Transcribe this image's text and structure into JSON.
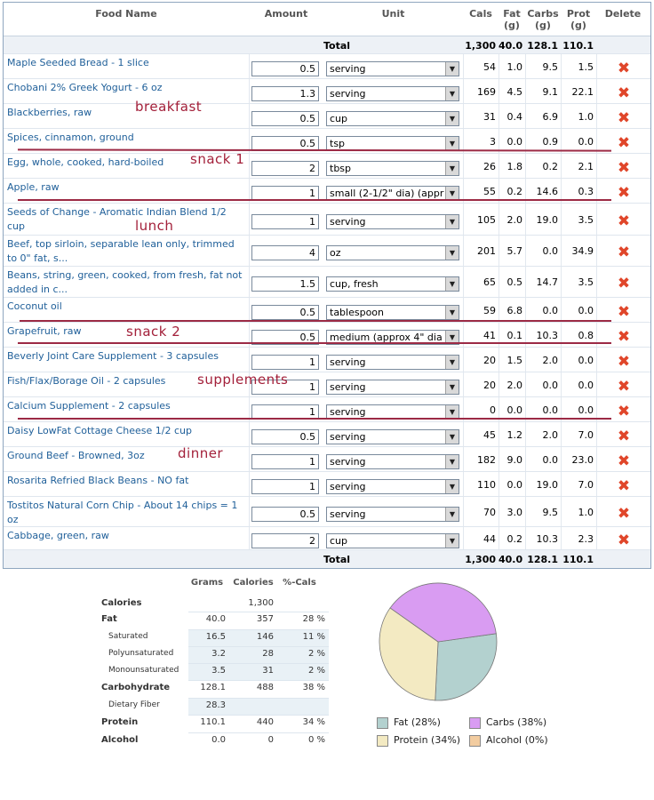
{
  "headers": {
    "name": "Food Name",
    "amount": "Amount",
    "unit": "Unit",
    "cals": "Cals",
    "fat": "Fat",
    "fat_unit": "(g)",
    "carbs": "Carbs",
    "carbs_unit": "(g)",
    "prot": "Prot",
    "prot_unit": "(g)",
    "delete": "Delete"
  },
  "total": {
    "label": "Total",
    "cals": "1,300",
    "fat": "40.0",
    "carbs": "128.1",
    "prot": "110.1"
  },
  "foods": [
    {
      "name": "Maple Seeded Bread - 1 slice",
      "amount": "0.5",
      "unit": "serving",
      "cals": "54",
      "fat": "1.0",
      "carbs": "9.5",
      "prot": "1.5"
    },
    {
      "name": "Chobani 2% Greek Yogurt - 6 oz",
      "amount": "1.3",
      "unit": "serving",
      "cals": "169",
      "fat": "4.5",
      "carbs": "9.1",
      "prot": "22.1"
    },
    {
      "name": "Blackberries, raw",
      "amount": "0.5",
      "unit": "cup",
      "cals": "31",
      "fat": "0.4",
      "carbs": "6.9",
      "prot": "1.0"
    },
    {
      "name": "Spices, cinnamon, ground",
      "amount": "0.5",
      "unit": "tsp",
      "cals": "3",
      "fat": "0.0",
      "carbs": "0.9",
      "prot": "0.0"
    },
    {
      "name": "Egg, whole, cooked, hard-boiled",
      "amount": "2",
      "unit": "tbsp",
      "cals": "26",
      "fat": "1.8",
      "carbs": "0.2",
      "prot": "2.1"
    },
    {
      "name": "Apple, raw",
      "amount": "1",
      "unit": "small (2-1/2\" dia) (appr",
      "cals": "55",
      "fat": "0.2",
      "carbs": "14.6",
      "prot": "0.3"
    },
    {
      "name": "Seeds of Change - Aromatic Indian Blend 1/2 cup",
      "amount": "1",
      "unit": "serving",
      "cals": "105",
      "fat": "2.0",
      "carbs": "19.0",
      "prot": "3.5"
    },
    {
      "name": "Beef, top sirloin, separable lean only, trimmed to 0\" fat, s...",
      "amount": "4",
      "unit": "oz",
      "cals": "201",
      "fat": "5.7",
      "carbs": "0.0",
      "prot": "34.9"
    },
    {
      "name": "Beans, string, green, cooked, from fresh, fat not added in c...",
      "amount": "1.5",
      "unit": "cup, fresh",
      "cals": "65",
      "fat": "0.5",
      "carbs": "14.7",
      "prot": "3.5"
    },
    {
      "name": "Coconut oil",
      "amount": "0.5",
      "unit": "tablespoon",
      "cals": "59",
      "fat": "6.8",
      "carbs": "0.0",
      "prot": "0.0"
    },
    {
      "name": "Grapefruit, raw",
      "amount": "0.5",
      "unit": "medium (approx 4\" dia",
      "cals": "41",
      "fat": "0.1",
      "carbs": "10.3",
      "prot": "0.8"
    },
    {
      "name": "Beverly Joint Care Supplement - 3 capsules",
      "amount": "1",
      "unit": "serving",
      "cals": "20",
      "fat": "1.5",
      "carbs": "2.0",
      "prot": "0.0"
    },
    {
      "name": "Fish/Flax/Borage Oil - 2 capsules",
      "amount": "1",
      "unit": "serving",
      "cals": "20",
      "fat": "2.0",
      "carbs": "0.0",
      "prot": "0.0"
    },
    {
      "name": "Calcium Supplement - 2 capsules",
      "amount": "1",
      "unit": "serving",
      "cals": "0",
      "fat": "0.0",
      "carbs": "0.0",
      "prot": "0.0"
    },
    {
      "name": "Daisy LowFat Cottage Cheese 1/2 cup",
      "amount": "0.5",
      "unit": "serving",
      "cals": "45",
      "fat": "1.2",
      "carbs": "2.0",
      "prot": "7.0"
    },
    {
      "name": "Ground Beef - Browned, 3oz",
      "amount": "1",
      "unit": "serving",
      "cals": "182",
      "fat": "9.0",
      "carbs": "0.0",
      "prot": "23.0"
    },
    {
      "name": "Rosarita Refried Black Beans - NO fat",
      "amount": "1",
      "unit": "serving",
      "cals": "110",
      "fat": "0.0",
      "carbs": "19.0",
      "prot": "7.0"
    },
    {
      "name": "Tostitos Natural Corn Chip - About 14 chips = 1 oz",
      "amount": "0.5",
      "unit": "serving",
      "cals": "70",
      "fat": "3.0",
      "carbs": "9.5",
      "prot": "1.0"
    },
    {
      "name": "Cabbage, green, raw",
      "amount": "2",
      "unit": "cup",
      "cals": "44",
      "fat": "0.2",
      "carbs": "10.3",
      "prot": "2.3"
    }
  ],
  "delete_icon": "red-x-icon",
  "annotations": {
    "breakfast": "breakfast",
    "snack1": "snack 1",
    "lunch": "lunch",
    "snack2": "snack 2",
    "supplements": "supplements",
    "dinner": "dinner"
  },
  "nutrition": {
    "headers": {
      "grams": "Grams",
      "calories": "Calories",
      "pct": "%-Cals"
    },
    "rows": [
      {
        "label": "Calories",
        "grams": "",
        "calories": "1,300",
        "pct": ""
      },
      {
        "label": "Fat",
        "grams": "40.0",
        "calories": "357",
        "pct": "28 %"
      },
      {
        "label": "Saturated",
        "grams": "16.5",
        "calories": "146",
        "pct": "11 %"
      },
      {
        "label": "Polyunsaturated",
        "grams": "3.2",
        "calories": "28",
        "pct": "2 %"
      },
      {
        "label": "Monounsaturated",
        "grams": "3.5",
        "calories": "31",
        "pct": "2 %"
      },
      {
        "label": "Carbohydrate",
        "grams": "128.1",
        "calories": "488",
        "pct": "38 %"
      },
      {
        "label": "Dietary Fiber",
        "grams": "28.3",
        "calories": "",
        "pct": ""
      },
      {
        "label": "Protein",
        "grams": "110.1",
        "calories": "440",
        "pct": "34 %"
      },
      {
        "label": "Alcohol",
        "grams": "0.0",
        "calories": "0",
        "pct": "0 %"
      }
    ]
  },
  "chart_data": {
    "type": "pie",
    "slices": [
      {
        "label": "Fat (28%)",
        "value": 28,
        "color": "#b3d1cf"
      },
      {
        "label": "Carbs (38%)",
        "value": 38,
        "color": "#d99cf2"
      },
      {
        "label": "Protein (34%)",
        "value": 34,
        "color": "#f3eac2"
      },
      {
        "label": "Alcohol (0%)",
        "value": 0,
        "color": "#f2cca0"
      }
    ],
    "legend_position": "bottom"
  }
}
